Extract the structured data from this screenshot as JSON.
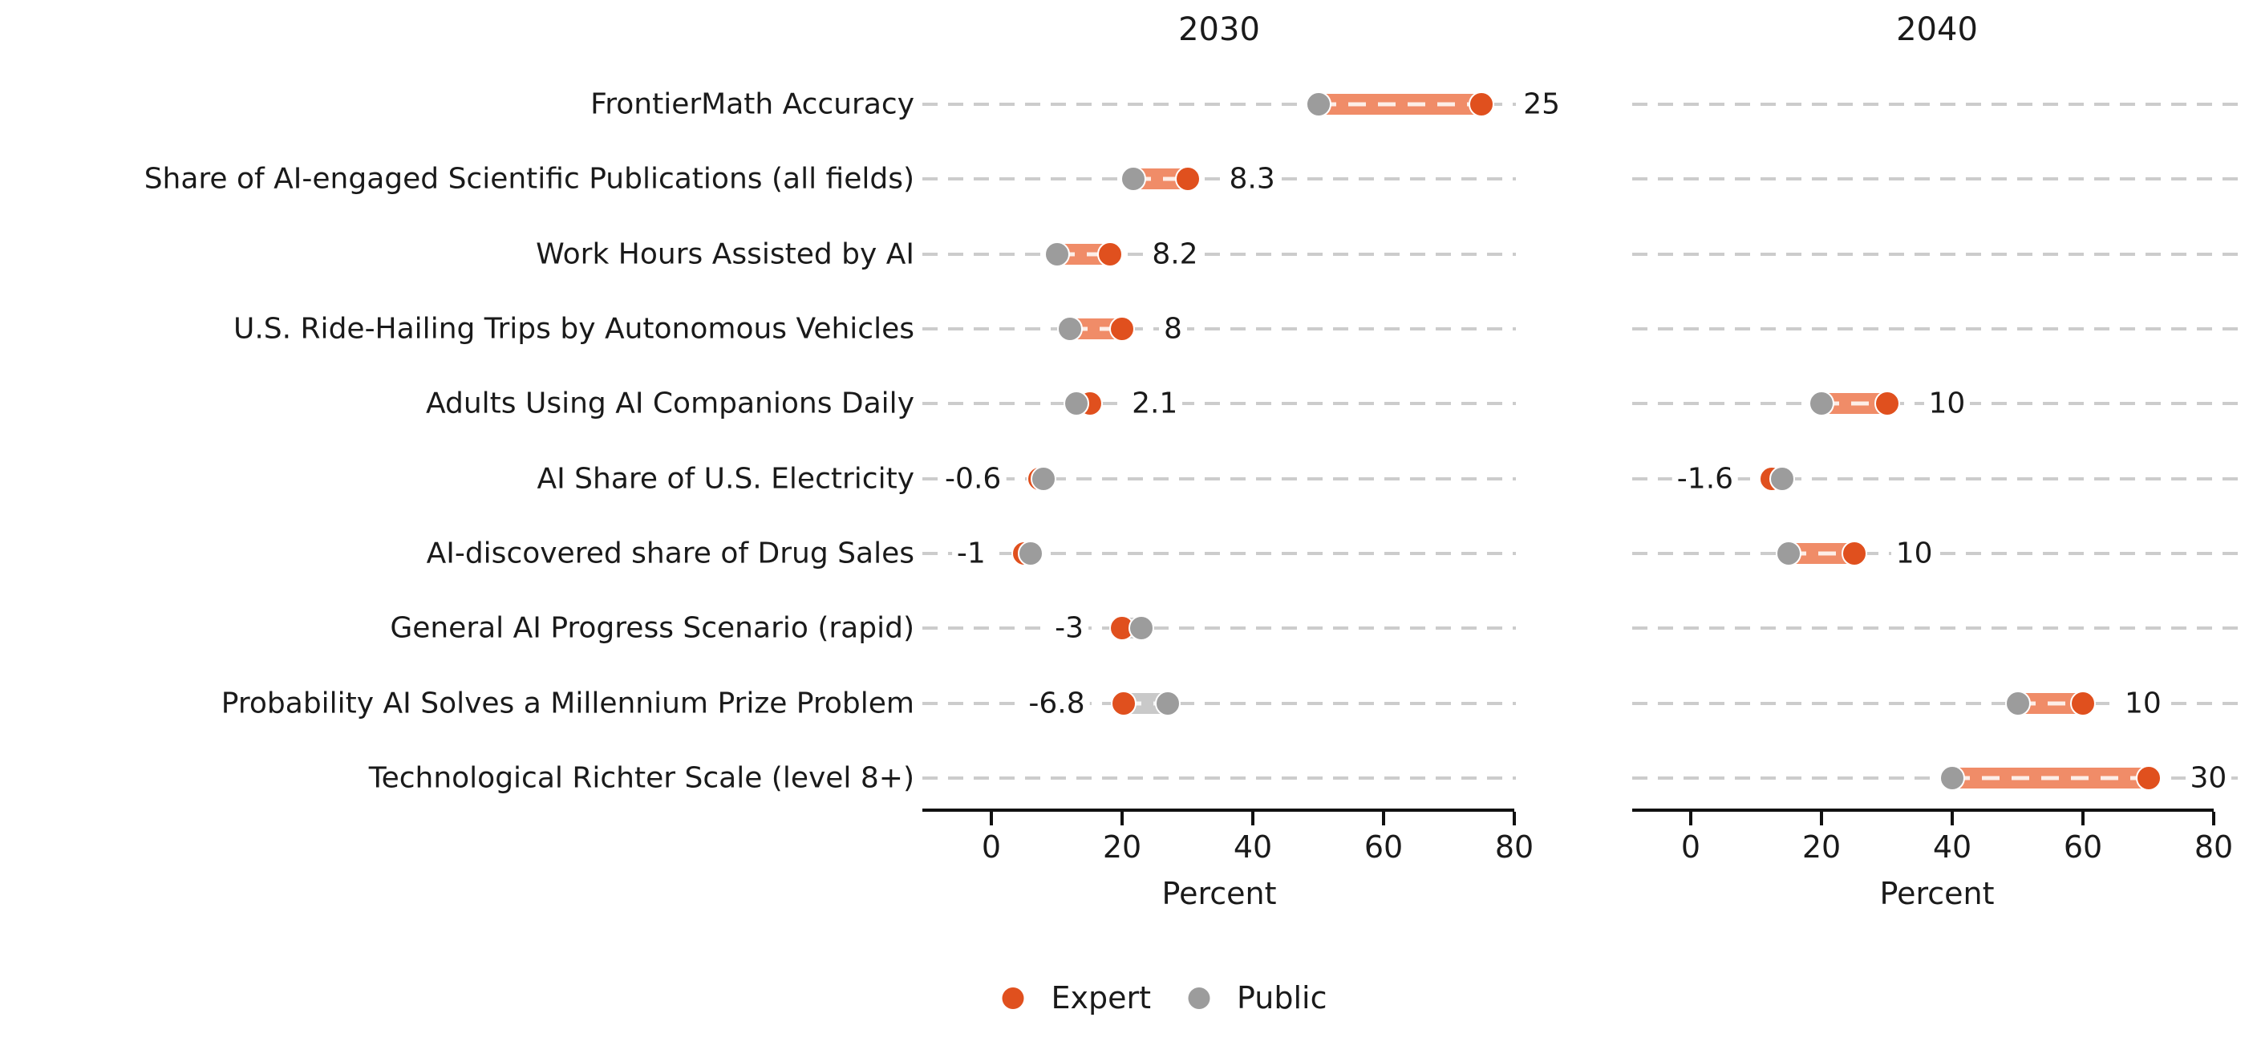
{
  "chart_data": {
    "type": "dumbbell",
    "facet_titles": [
      "2030",
      "2040"
    ],
    "xlabel": "Percent",
    "x_ticks": [
      0,
      20,
      40,
      60,
      80
    ],
    "xlim": [
      -10.5,
      80.5
    ],
    "grid": "dashed-horizontal",
    "legend_position": "bottom-center",
    "legend": [
      {
        "name": "Expert",
        "color": "#E0501E"
      },
      {
        "name": "Public",
        "color": "#9C9C9C"
      }
    ],
    "colors": {
      "expert": "#E0501E",
      "public": "#9C9C9C",
      "bar_positive": "#F08C68",
      "bar_negative": "#C9C9C9",
      "gridline": "#CCCCCC",
      "axis": "#111111"
    },
    "rows": [
      {
        "category": "FrontierMath Accuracy",
        "y2030": {
          "public": 50,
          "expert": 75,
          "diff_label": "25"
        },
        "y2040": null
      },
      {
        "category": "Share of AI-engaged Scientific Publications (all fields)",
        "y2030": {
          "public": 21.7,
          "expert": 30,
          "diff_label": "8.3"
        },
        "y2040": null
      },
      {
        "category": "Work Hours Assisted by AI",
        "y2030": {
          "public": 10,
          "expert": 18.2,
          "diff_label": "8.2"
        },
        "y2040": null
      },
      {
        "category": "U.S. Ride-Hailing Trips by Autonomous Vehicles",
        "y2030": {
          "public": 12,
          "expert": 20,
          "diff_label": "8"
        },
        "y2040": null
      },
      {
        "category": "Adults Using AI Companions Daily",
        "y2030": {
          "public": 13,
          "expert": 15.1,
          "diff_label": "2.1"
        },
        "y2040": {
          "public": 20,
          "expert": 30,
          "diff_label": "10"
        }
      },
      {
        "category": "AI Share of U.S. Electricity",
        "y2030": {
          "public": 8,
          "expert": 7.4,
          "diff_label": "-0.6"
        },
        "y2040": {
          "public": 14,
          "expert": 12.4,
          "diff_label": "-1.6"
        }
      },
      {
        "category": "AI-discovered share of Drug Sales",
        "y2030": {
          "public": 6,
          "expert": 5,
          "diff_label": "-1"
        },
        "y2040": {
          "public": 15,
          "expert": 25,
          "diff_label": "10"
        }
      },
      {
        "category": "General AI Progress Scenario (rapid)",
        "y2030": {
          "public": 23,
          "expert": 20,
          "diff_label": "-3"
        },
        "y2040": null
      },
      {
        "category": "Probability AI Solves a Millennium Prize Problem",
        "y2030": {
          "public": 27,
          "expert": 20.2,
          "diff_label": "-6.8"
        },
        "y2040": {
          "public": 50,
          "expert": 60,
          "diff_label": "10"
        }
      },
      {
        "category": "Technological Richter Scale (level 8+)",
        "y2030": null,
        "y2040": {
          "public": 40,
          "expert": 70,
          "diff_label": "30"
        }
      }
    ]
  }
}
